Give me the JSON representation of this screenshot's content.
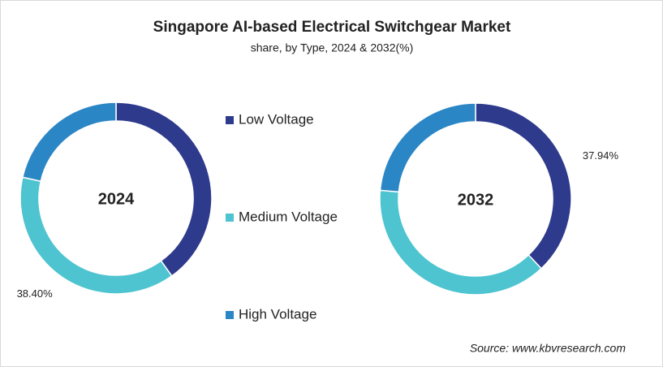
{
  "chart_data": [
    {
      "type": "pie",
      "title": "Singapore AI-based Electrical Switchgear Market",
      "subtitle": "share, by Type, 2024 & 2032(%)",
      "center_label": "2024",
      "categories": [
        "Low Voltage",
        "Medium Voltage",
        "High Voltage"
      ],
      "colors": [
        "#2e3a8c",
        "#4dc4d0",
        "#2b86c5"
      ],
      "values": [
        40.1,
        38.4,
        21.5
      ],
      "value_labels": [
        null,
        "38.40%",
        null
      ]
    },
    {
      "type": "pie",
      "center_label": "2032",
      "categories": [
        "Low Voltage",
        "Medium Voltage",
        "High Voltage"
      ],
      "colors": [
        "#2e3a8c",
        "#4dc4d0",
        "#2b86c5"
      ],
      "values": [
        37.94,
        38.5,
        23.56
      ],
      "value_labels": [
        "37.94%",
        null,
        null
      ]
    }
  ],
  "source": "Source: www.kbvresearch.com"
}
